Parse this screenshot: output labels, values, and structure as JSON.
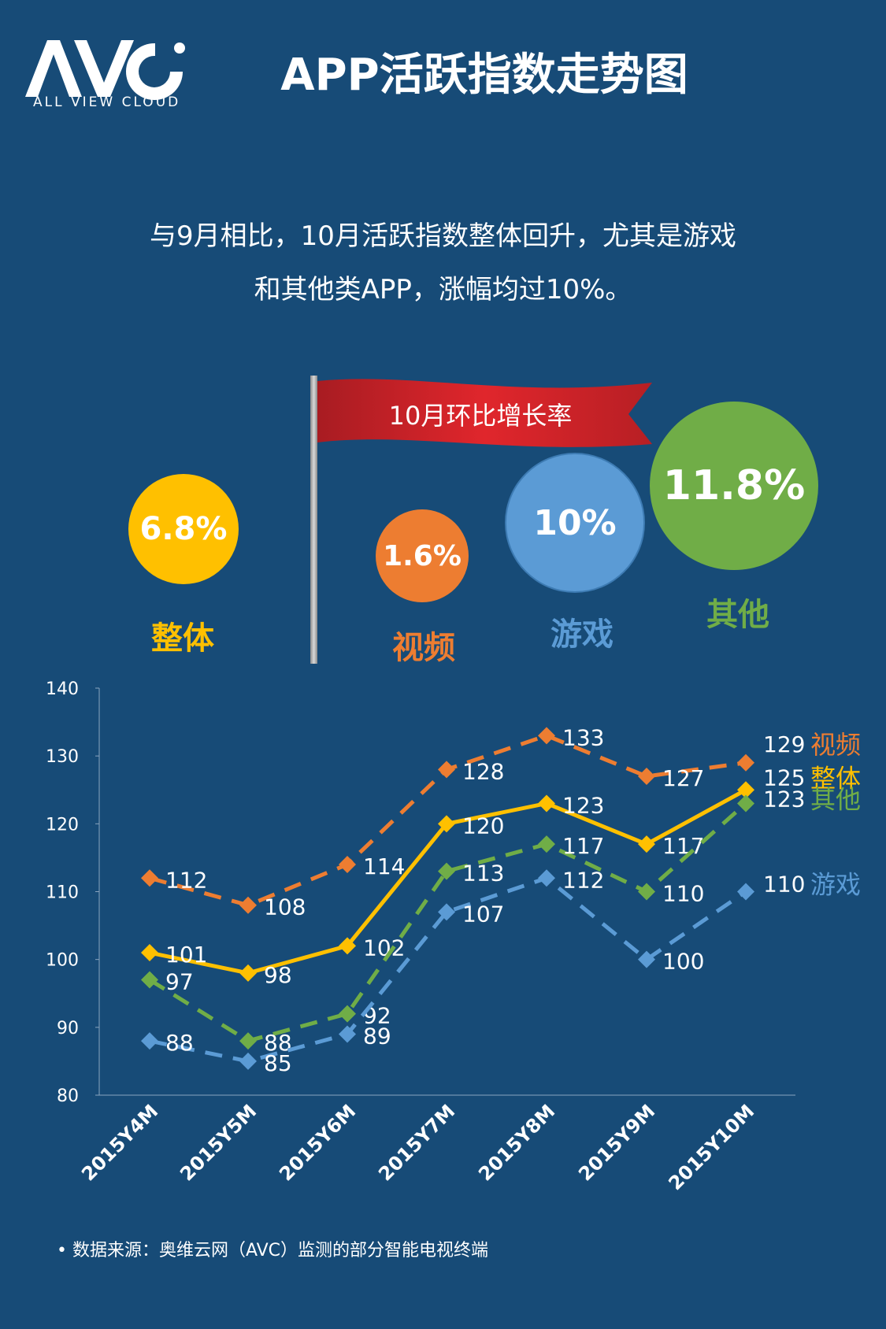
{
  "logo": {
    "text": "AVC",
    "subtitle": "ALL VIEW CLOUD"
  },
  "title": "APP活跃指数走势图",
  "subtitle_lines": [
    "与9月相比，10月活跃指数整体回升，尤其是游戏",
    "和其他类APP，涨幅均过10%。"
  ],
  "flag_label": "10月环比增长率",
  "growth": [
    {
      "label": "整体",
      "value": "6.8%",
      "color": "#ffc000"
    },
    {
      "label": "视频",
      "value": "1.6%",
      "color": "#ed7d31"
    },
    {
      "label": "游戏",
      "value": "10%",
      "color": "#5b9bd5"
    },
    {
      "label": "其他",
      "value": "11.8%",
      "color": "#70ad47"
    }
  ],
  "chart_data": {
    "type": "line",
    "categories": [
      "2015Y4M",
      "2015Y5M",
      "2015Y6M",
      "2015Y7M",
      "2015Y8M",
      "2015Y9M",
      "2015Y10M"
    ],
    "ylim": [
      80,
      140
    ],
    "yticks": [
      80,
      90,
      100,
      110,
      120,
      130,
      140
    ],
    "grid": false,
    "legend": "right-end labels",
    "series": [
      {
        "name": "视频",
        "values": [
          112,
          108,
          114,
          128,
          133,
          127,
          129
        ],
        "color": "#ed7d31",
        "dashed": true
      },
      {
        "name": "整体",
        "values": [
          101,
          98,
          102,
          120,
          123,
          117,
          125
        ],
        "color": "#ffc000",
        "dashed": false
      },
      {
        "name": "其他",
        "values": [
          97,
          88,
          92,
          113,
          117,
          110,
          123
        ],
        "color": "#70ad47",
        "dashed": true
      },
      {
        "name": "游戏",
        "values": [
          88,
          85,
          89,
          107,
          112,
          100,
          110
        ],
        "color": "#5b9bd5",
        "dashed": true
      }
    ]
  },
  "footnote": "•  数据来源：奥维云网（AVC）监测的部分智能电视终端"
}
